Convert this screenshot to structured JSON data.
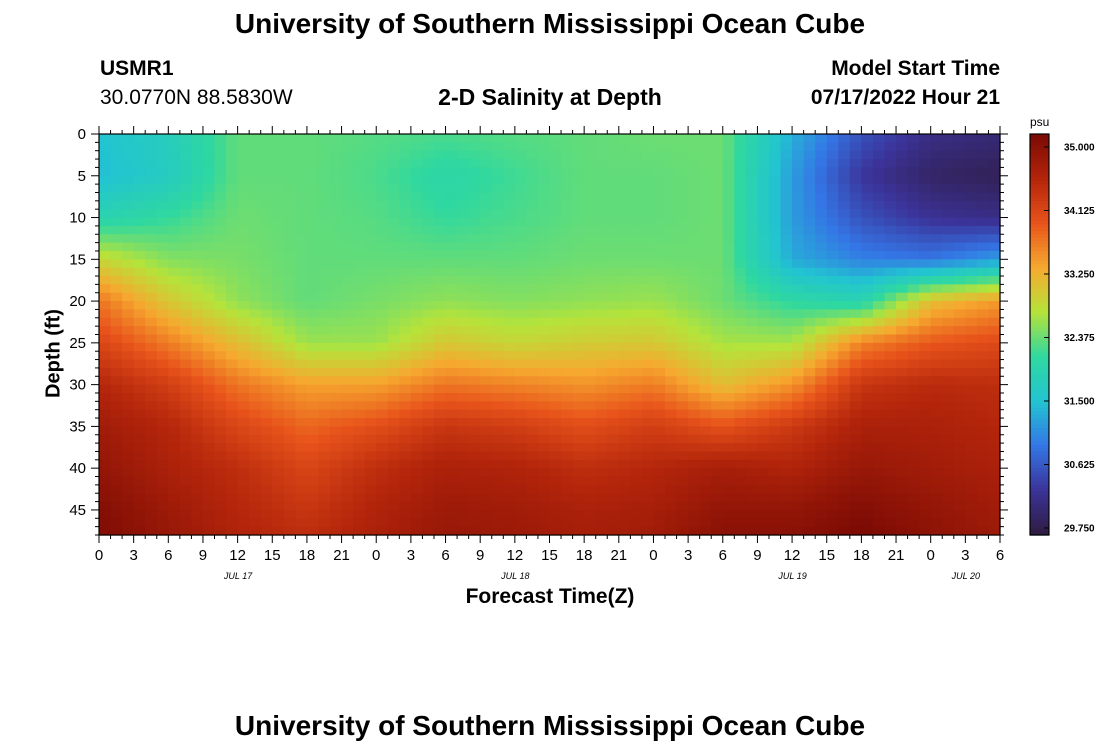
{
  "header": {
    "title": "University of Southern Mississippi Ocean Cube",
    "station": "USMR1",
    "coords": "30.0770N  88.5830W",
    "chart_title": "2-D Salinity at Depth",
    "model_label": "Model Start Time",
    "model_time": "07/17/2022 Hour 21"
  },
  "footer": {
    "title": "University of Southern Mississippi Ocean Cube"
  },
  "colors": {
    "scale": [
      "#2f1b3f",
      "#3b3399",
      "#3476e6",
      "#22c4d1",
      "#2fd8a0",
      "#b6e33a",
      "#f6a92f",
      "#e8531b",
      "#b3250b",
      "#7a0a04"
    ]
  },
  "chart_data": {
    "type": "heatmap",
    "title": "2-D Salinity at Depth",
    "xlabel": "Forecast Time(Z)",
    "ylabel": "Depth (ft)",
    "x_tick_labels": [
      "0",
      "3",
      "6",
      "9",
      "12",
      "15",
      "18",
      "21",
      "0",
      "3",
      "6",
      "9",
      "12",
      "15",
      "18",
      "21",
      "0",
      "3",
      "6",
      "9",
      "12",
      "15",
      "18",
      "21",
      "0",
      "3",
      "6"
    ],
    "x_date_labels": [
      {
        "label": "JUL 17",
        "tick_index": 4
      },
      {
        "label": "JUL 18",
        "tick_index": 12
      },
      {
        "label": "JUL 19",
        "tick_index": 20
      },
      {
        "label": "JUL 20",
        "tick_index": 25
      }
    ],
    "xlim_hours": [
      0,
      78
    ],
    "y_ticks": [
      0,
      5,
      10,
      15,
      20,
      25,
      30,
      35,
      40,
      45
    ],
    "ylim": [
      0,
      48
    ],
    "colorbar": {
      "unit": "psu",
      "min": 29.75,
      "max": 35.0,
      "ticks": [
        "35.000",
        "34.125",
        "33.250",
        "32.375",
        "31.500",
        "30.625",
        "29.750"
      ]
    },
    "depth_profile_ft": [
      0,
      5,
      10,
      15,
      20,
      25,
      30,
      35,
      40,
      45,
      48
    ],
    "series": [
      {
        "hour": 0,
        "salinity": [
          31.5,
          31.45,
          31.9,
          32.8,
          33.6,
          34.0,
          34.4,
          34.6,
          34.75,
          34.9,
          34.95
        ]
      },
      {
        "hour": 6,
        "salinity": [
          31.75,
          31.7,
          32.1,
          32.45,
          32.95,
          33.55,
          34.1,
          34.4,
          34.5,
          34.65,
          34.7
        ]
      },
      {
        "hour": 12,
        "salinity": [
          32.3,
          32.3,
          32.35,
          32.4,
          32.5,
          33.05,
          33.6,
          34.0,
          34.3,
          34.4,
          34.45
        ]
      },
      {
        "hour": 18,
        "salinity": [
          32.3,
          32.3,
          32.3,
          32.3,
          32.3,
          32.55,
          33.3,
          33.7,
          34.0,
          34.2,
          34.3
        ]
      },
      {
        "hour": 24,
        "salinity": [
          32.25,
          32.2,
          32.25,
          32.3,
          32.4,
          32.55,
          33.3,
          33.9,
          34.3,
          34.45,
          34.5
        ]
      },
      {
        "hour": 30,
        "salinity": [
          32.2,
          32.0,
          32.1,
          32.3,
          32.5,
          32.95,
          33.6,
          34.2,
          34.5,
          34.65,
          34.7
        ]
      },
      {
        "hour": 36,
        "salinity": [
          32.25,
          32.15,
          32.2,
          32.3,
          32.45,
          32.8,
          33.5,
          34.1,
          34.45,
          34.6,
          34.65
        ]
      },
      {
        "hour": 42,
        "salinity": [
          32.3,
          32.3,
          32.3,
          32.35,
          32.5,
          32.9,
          33.4,
          33.9,
          34.3,
          34.5,
          34.55
        ]
      },
      {
        "hour": 48,
        "salinity": [
          32.35,
          32.3,
          32.3,
          32.35,
          32.55,
          32.95,
          33.55,
          34.1,
          34.4,
          34.55,
          34.6
        ]
      },
      {
        "hour": 54,
        "salinity": [
          32.35,
          32.35,
          32.35,
          32.35,
          32.35,
          32.6,
          33.05,
          33.85,
          34.55,
          34.75,
          34.85
        ]
      },
      {
        "hour": 60,
        "salinity": [
          31.35,
          31.2,
          31.2,
          31.3,
          32.05,
          32.6,
          33.4,
          34.15,
          34.45,
          34.75,
          34.85
        ]
      },
      {
        "hour": 66,
        "salinity": [
          30.6,
          30.35,
          30.6,
          31.0,
          31.9,
          33.5,
          34.2,
          34.5,
          34.7,
          34.9,
          35.0
        ]
      },
      {
        "hour": 72,
        "salinity": [
          30.2,
          30.0,
          30.3,
          30.9,
          33.05,
          33.8,
          34.35,
          34.5,
          34.6,
          34.75,
          34.8
        ]
      },
      {
        "hour": 78,
        "salinity": [
          30.1,
          29.9,
          30.2,
          31.2,
          33.35,
          33.95,
          34.3,
          34.4,
          34.5,
          34.6,
          34.65
        ]
      }
    ]
  }
}
